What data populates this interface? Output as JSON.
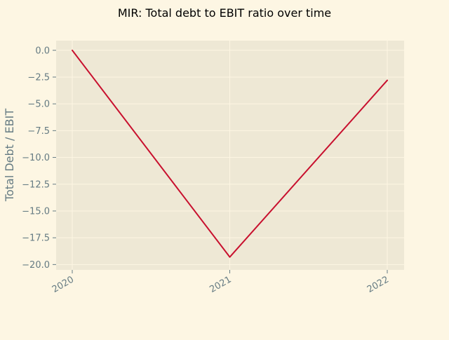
{
  "chart_data": {
    "type": "line",
    "title": "MIR: Total debt to EBIT ratio over time",
    "xlabel": "",
    "ylabel": "Total Debt / EBIT",
    "x": [
      "2020",
      "2021",
      "2022"
    ],
    "series": [
      {
        "values": [
          0.0,
          -19.3,
          -2.8
        ]
      }
    ],
    "ylim": [
      -20.5,
      0.9
    ],
    "yticks": [
      0.0,
      -2.5,
      -5.0,
      -7.5,
      -10.0,
      -12.5,
      -15.0,
      -17.5,
      -20.0
    ],
    "ytick_labels": [
      "0.0",
      "−2.5",
      "−5.0",
      "−7.5",
      "−10.0",
      "−12.5",
      "−15.0",
      "−17.5",
      "−20.0"
    ],
    "grid": true,
    "colors": {
      "figure_background": "#fdf6e3",
      "plot_background": "#eee8d5",
      "grid": "#fdf6e3",
      "line": "#c8102e",
      "tick_text": "#657b83"
    }
  }
}
